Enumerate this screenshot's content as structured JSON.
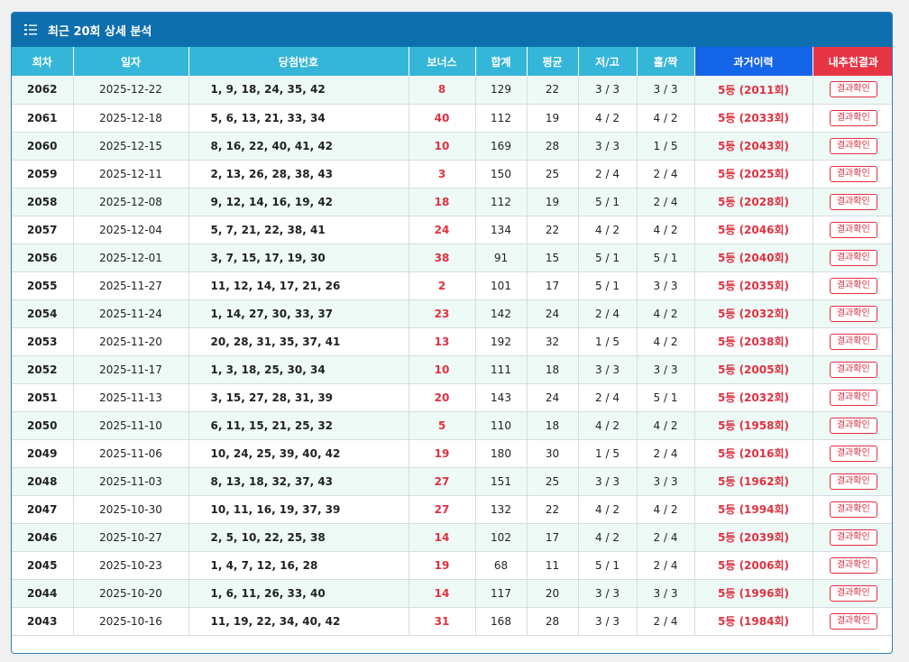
{
  "panel": {
    "title": "최근 20회 상세 분석",
    "icon": "numbered-list-icon"
  },
  "colors": {
    "header_bg": "#0e6fae",
    "column_header_bg": "#35b6d8",
    "history_header_bg": "#1565e8",
    "result_header_bg": "#e83545",
    "accent_red": "#e23040",
    "row_alt_bg": "#eefaf5"
  },
  "columns": {
    "round": "회차",
    "date": "일자",
    "numbers": "당첨번호",
    "bonus": "보너스",
    "sum": "합계",
    "avg": "평균",
    "lowhigh": "저/고",
    "oddeven": "홀/짝",
    "history": "과거이력",
    "result": "내추천결과"
  },
  "rows": [
    {
      "round": "2062",
      "date": "2025-12-22",
      "numbers": "1, 9, 18, 24, 35, 42",
      "bonus": "8",
      "sum": "129",
      "avg": "22",
      "lowhigh": "3 / 3",
      "oddeven": "3 / 3",
      "history": "5등 (2011회)",
      "result_label": "결과확인"
    },
    {
      "round": "2061",
      "date": "2025-12-18",
      "numbers": "5, 6, 13, 21, 33, 34",
      "bonus": "40",
      "sum": "112",
      "avg": "19",
      "lowhigh": "4 / 2",
      "oddeven": "4 / 2",
      "history": "5등 (2033회)",
      "result_label": "결과확인"
    },
    {
      "round": "2060",
      "date": "2025-12-15",
      "numbers": "8, 16, 22, 40, 41, 42",
      "bonus": "10",
      "sum": "169",
      "avg": "28",
      "lowhigh": "3 / 3",
      "oddeven": "1 / 5",
      "history": "5등 (2043회)",
      "result_label": "결과확인"
    },
    {
      "round": "2059",
      "date": "2025-12-11",
      "numbers": "2, 13, 26, 28, 38, 43",
      "bonus": "3",
      "sum": "150",
      "avg": "25",
      "lowhigh": "2 / 4",
      "oddeven": "2 / 4",
      "history": "5등 (2025회)",
      "result_label": "결과확인"
    },
    {
      "round": "2058",
      "date": "2025-12-08",
      "numbers": "9, 12, 14, 16, 19, 42",
      "bonus": "18",
      "sum": "112",
      "avg": "19",
      "lowhigh": "5 / 1",
      "oddeven": "2 / 4",
      "history": "5등 (2028회)",
      "result_label": "결과확인"
    },
    {
      "round": "2057",
      "date": "2025-12-04",
      "numbers": "5, 7, 21, 22, 38, 41",
      "bonus": "24",
      "sum": "134",
      "avg": "22",
      "lowhigh": "4 / 2",
      "oddeven": "4 / 2",
      "history": "5등 (2046회)",
      "result_label": "결과확인"
    },
    {
      "round": "2056",
      "date": "2025-12-01",
      "numbers": "3, 7, 15, 17, 19, 30",
      "bonus": "38",
      "sum": "91",
      "avg": "15",
      "lowhigh": "5 / 1",
      "oddeven": "5 / 1",
      "history": "5등 (2040회)",
      "result_label": "결과확인"
    },
    {
      "round": "2055",
      "date": "2025-11-27",
      "numbers": "11, 12, 14, 17, 21, 26",
      "bonus": "2",
      "sum": "101",
      "avg": "17",
      "lowhigh": "5 / 1",
      "oddeven": "3 / 3",
      "history": "5등 (2035회)",
      "result_label": "결과확인"
    },
    {
      "round": "2054",
      "date": "2025-11-24",
      "numbers": "1, 14, 27, 30, 33, 37",
      "bonus": "23",
      "sum": "142",
      "avg": "24",
      "lowhigh": "2 / 4",
      "oddeven": "4 / 2",
      "history": "5등 (2032회)",
      "result_label": "결과확인"
    },
    {
      "round": "2053",
      "date": "2025-11-20",
      "numbers": "20, 28, 31, 35, 37, 41",
      "bonus": "13",
      "sum": "192",
      "avg": "32",
      "lowhigh": "1 / 5",
      "oddeven": "4 / 2",
      "history": "5등 (2038회)",
      "result_label": "결과확인"
    },
    {
      "round": "2052",
      "date": "2025-11-17",
      "numbers": "1, 3, 18, 25, 30, 34",
      "bonus": "10",
      "sum": "111",
      "avg": "18",
      "lowhigh": "3 / 3",
      "oddeven": "3 / 3",
      "history": "5등 (2005회)",
      "result_label": "결과확인"
    },
    {
      "round": "2051",
      "date": "2025-11-13",
      "numbers": "3, 15, 27, 28, 31, 39",
      "bonus": "20",
      "sum": "143",
      "avg": "24",
      "lowhigh": "2 / 4",
      "oddeven": "5 / 1",
      "history": "5등 (2032회)",
      "result_label": "결과확인"
    },
    {
      "round": "2050",
      "date": "2025-11-10",
      "numbers": "6, 11, 15, 21, 25, 32",
      "bonus": "5",
      "sum": "110",
      "avg": "18",
      "lowhigh": "4 / 2",
      "oddeven": "4 / 2",
      "history": "5등 (1958회)",
      "result_label": "결과확인"
    },
    {
      "round": "2049",
      "date": "2025-11-06",
      "numbers": "10, 24, 25, 39, 40, 42",
      "bonus": "19",
      "sum": "180",
      "avg": "30",
      "lowhigh": "1 / 5",
      "oddeven": "2 / 4",
      "history": "5등 (2016회)",
      "result_label": "결과확인"
    },
    {
      "round": "2048",
      "date": "2025-11-03",
      "numbers": "8, 13, 18, 32, 37, 43",
      "bonus": "27",
      "sum": "151",
      "avg": "25",
      "lowhigh": "3 / 3",
      "oddeven": "3 / 3",
      "history": "5등 (1962회)",
      "result_label": "결과확인"
    },
    {
      "round": "2047",
      "date": "2025-10-30",
      "numbers": "10, 11, 16, 19, 37, 39",
      "bonus": "27",
      "sum": "132",
      "avg": "22",
      "lowhigh": "4 / 2",
      "oddeven": "4 / 2",
      "history": "5등 (1994회)",
      "result_label": "결과확인"
    },
    {
      "round": "2046",
      "date": "2025-10-27",
      "numbers": "2, 5, 10, 22, 25, 38",
      "bonus": "14",
      "sum": "102",
      "avg": "17",
      "lowhigh": "4 / 2",
      "oddeven": "2 / 4",
      "history": "5등 (2039회)",
      "result_label": "결과확인"
    },
    {
      "round": "2045",
      "date": "2025-10-23",
      "numbers": "1, 4, 7, 12, 16, 28",
      "bonus": "19",
      "sum": "68",
      "avg": "11",
      "lowhigh": "5 / 1",
      "oddeven": "2 / 4",
      "history": "5등 (2006회)",
      "result_label": "결과확인"
    },
    {
      "round": "2044",
      "date": "2025-10-20",
      "numbers": "1, 6, 11, 26, 33, 40",
      "bonus": "14",
      "sum": "117",
      "avg": "20",
      "lowhigh": "3 / 3",
      "oddeven": "3 / 3",
      "history": "5등 (1996회)",
      "result_label": "결과확인"
    },
    {
      "round": "2043",
      "date": "2025-10-16",
      "numbers": "11, 19, 22, 34, 40, 42",
      "bonus": "31",
      "sum": "168",
      "avg": "28",
      "lowhigh": "3 / 3",
      "oddeven": "2 / 4",
      "history": "5등 (1984회)",
      "result_label": "결과확인"
    }
  ]
}
